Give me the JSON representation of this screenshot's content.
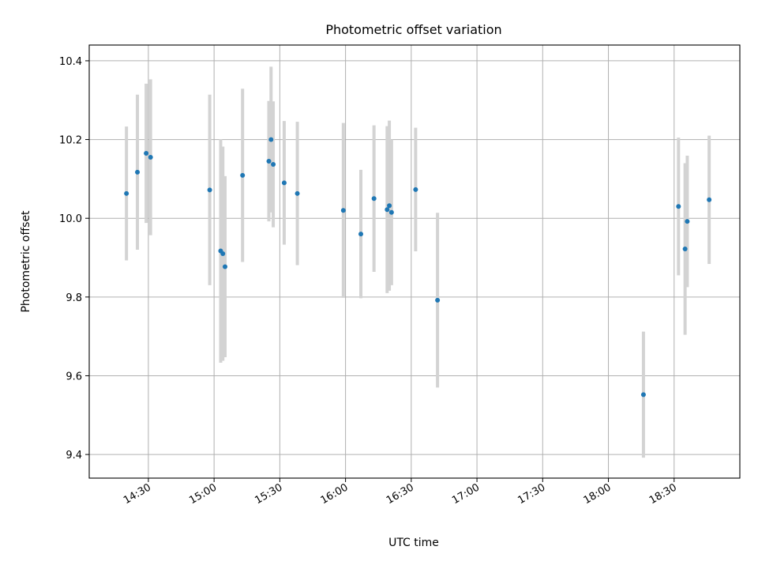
{
  "chart_data": {
    "type": "scatter",
    "title": "Photometric offset variation",
    "xlabel": "UTC time",
    "ylabel": "Photometric offset",
    "grid": true,
    "x_tick_labels": [
      "14:30",
      "15:00",
      "15:30",
      "16:00",
      "16:30",
      "17:00",
      "17:30",
      "18:00",
      "18:30"
    ],
    "xlim": [
      "14:03",
      "19:00"
    ],
    "ylim": [
      9.34,
      10.44
    ],
    "y_ticks": [
      9.4,
      9.6,
      9.8,
      10.0,
      10.2,
      10.4
    ],
    "y_tick_labels": [
      "9.4",
      "9.6",
      "9.8",
      "10.0",
      "10.2",
      "10.4"
    ],
    "marker_color": "#1f77b4",
    "errorbar_color": "#d3d3d3",
    "series": [
      {
        "points": [
          {
            "x": "14:20",
            "y": 10.063,
            "err": 0.17
          },
          {
            "x": "14:25",
            "y": 10.117,
            "err": 0.197
          },
          {
            "x": "14:29",
            "y": 10.165,
            "err": 0.177
          },
          {
            "x": "14:31",
            "y": 10.155,
            "err": 0.198
          },
          {
            "x": "14:58",
            "y": 10.072,
            "err": 0.242
          },
          {
            "x": "15:03",
            "y": 9.917,
            "err": 0.284
          },
          {
            "x": "15:04",
            "y": 9.91,
            "err": 0.272
          },
          {
            "x": "15:05",
            "y": 9.877,
            "err": 0.23
          },
          {
            "x": "15:13",
            "y": 10.109,
            "err": 0.22
          },
          {
            "x": "15:25",
            "y": 10.145,
            "err": 0.153
          },
          {
            "x": "15:26",
            "y": 10.2,
            "err": 0.185
          },
          {
            "x": "15:27",
            "y": 10.137,
            "err": 0.16
          },
          {
            "x": "15:32",
            "y": 10.09,
            "err": 0.157
          },
          {
            "x": "15:38",
            "y": 10.063,
            "err": 0.182
          },
          {
            "x": "15:59",
            "y": 10.02,
            "err": 0.222
          },
          {
            "x": "16:07",
            "y": 9.96,
            "err": 0.163
          },
          {
            "x": "16:13",
            "y": 10.05,
            "err": 0.186
          },
          {
            "x": "16:19",
            "y": 10.022,
            "err": 0.212
          },
          {
            "x": "16:20",
            "y": 10.032,
            "err": 0.216
          },
          {
            "x": "16:21",
            "y": 10.015,
            "err": 0.185
          },
          {
            "x": "16:32",
            "y": 10.073,
            "err": 0.157
          },
          {
            "x": "16:42",
            "y": 9.792,
            "err": 0.222
          },
          {
            "x": "18:16",
            "y": 9.552,
            "err": 0.16
          },
          {
            "x": "18:32",
            "y": 10.03,
            "err": 0.175
          },
          {
            "x": "18:35",
            "y": 9.922,
            "err": 0.218
          },
          {
            "x": "18:36",
            "y": 9.992,
            "err": 0.167
          },
          {
            "x": "18:46",
            "y": 10.047,
            "err": 0.163
          }
        ]
      }
    ]
  }
}
